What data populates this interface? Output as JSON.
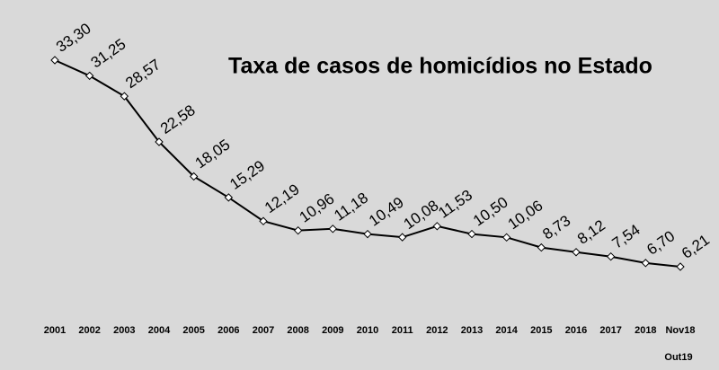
{
  "chart_data": {
    "type": "line",
    "title": "Taxa de casos de homicídios no Estado",
    "categories": [
      "2001",
      "2002",
      "2003",
      "2004",
      "2005",
      "2006",
      "2007",
      "2008",
      "2009",
      "2010",
      "2011",
      "2012",
      "2013",
      "2014",
      "2015",
      "2016",
      "2017",
      "2018",
      "Nov18"
    ],
    "annotation": "Out19",
    "values": [
      33.3,
      31.25,
      28.57,
      22.58,
      18.05,
      15.29,
      12.19,
      10.96,
      11.18,
      10.49,
      10.08,
      11.53,
      10.5,
      10.06,
      8.73,
      8.12,
      7.54,
      6.7,
      6.21
    ],
    "value_labels": [
      "33,30",
      "31,25",
      "28,57",
      "22,58",
      "18,05",
      "15,29",
      "12,19",
      "10,96",
      "11,18",
      "10,49",
      "10,08",
      "11,53",
      "10,50",
      "10,06",
      "8,73",
      "8,12",
      "7,54",
      "6,70",
      "6,21"
    ],
    "color": "#000000"
  }
}
